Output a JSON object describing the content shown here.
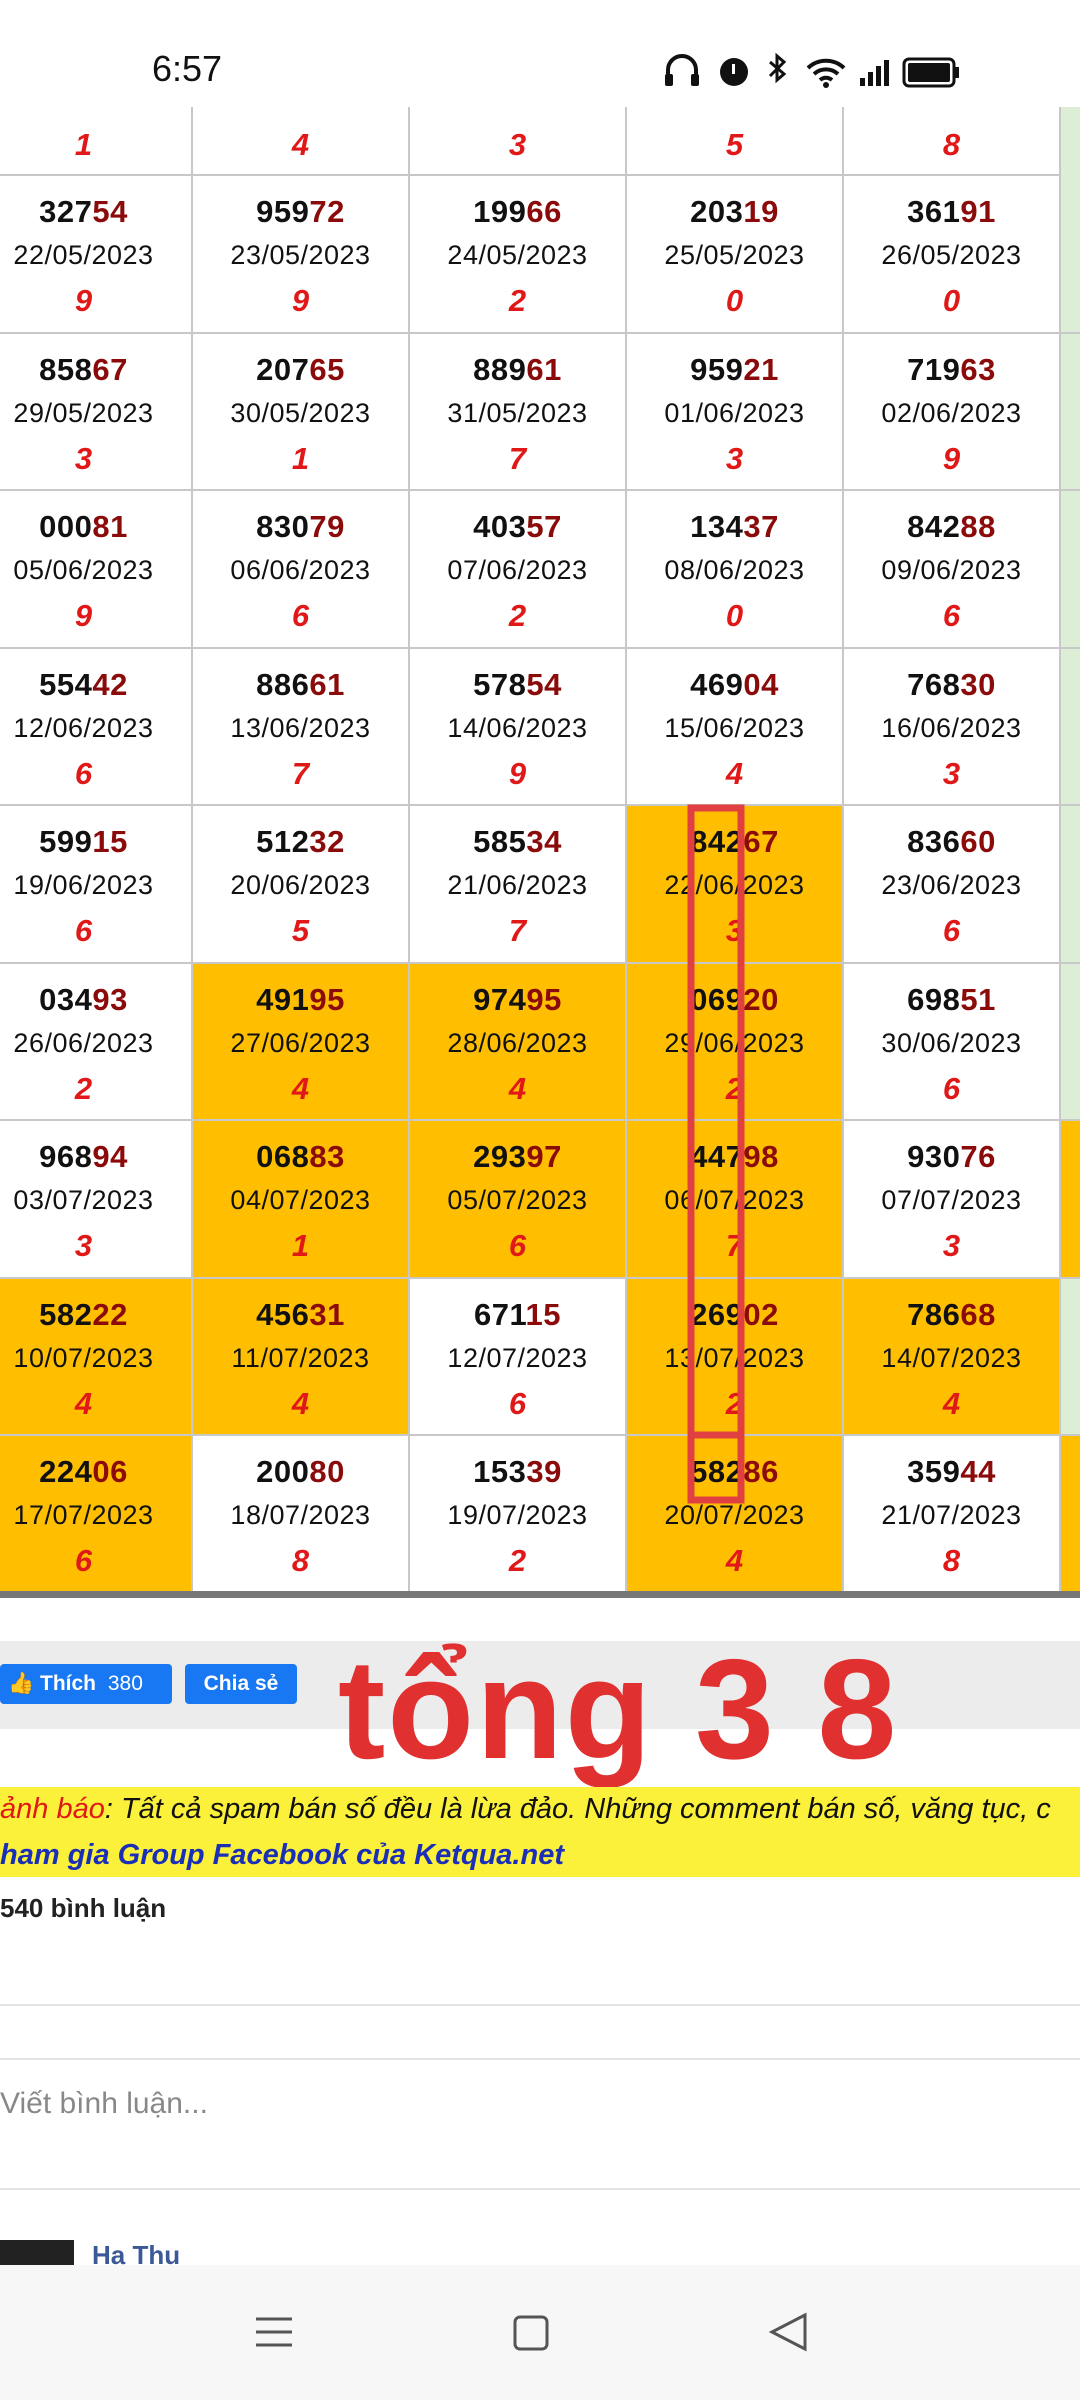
{
  "status_bar": {
    "time": "6:57"
  },
  "table": {
    "top_row": [
      "1",
      "4",
      "3",
      "5",
      "8"
    ],
    "rows": [
      {
        "edge_highlight": false,
        "cells": [
          {
            "number": "32754",
            "date": "22/05/2023",
            "digit": "9",
            "highlight": false
          },
          {
            "number": "95972",
            "date": "23/05/2023",
            "digit": "9",
            "highlight": false
          },
          {
            "number": "19966",
            "date": "24/05/2023",
            "digit": "2",
            "highlight": false
          },
          {
            "number": "20319",
            "date": "25/05/2023",
            "digit": "0",
            "highlight": false
          },
          {
            "number": "36191",
            "date": "26/05/2023",
            "digit": "0",
            "highlight": false
          }
        ]
      },
      {
        "edge_highlight": false,
        "cells": [
          {
            "number": "85867",
            "date": "29/05/2023",
            "digit": "3",
            "highlight": false
          },
          {
            "number": "20765",
            "date": "30/05/2023",
            "digit": "1",
            "highlight": false
          },
          {
            "number": "88961",
            "date": "31/05/2023",
            "digit": "7",
            "highlight": false
          },
          {
            "number": "95921",
            "date": "01/06/2023",
            "digit": "3",
            "highlight": false
          },
          {
            "number": "71963",
            "date": "02/06/2023",
            "digit": "9",
            "highlight": false
          }
        ]
      },
      {
        "edge_highlight": false,
        "cells": [
          {
            "number": "00081",
            "date": "05/06/2023",
            "digit": "9",
            "highlight": false
          },
          {
            "number": "83079",
            "date": "06/06/2023",
            "digit": "6",
            "highlight": false
          },
          {
            "number": "40357",
            "date": "07/06/2023",
            "digit": "2",
            "highlight": false
          },
          {
            "number": "13437",
            "date": "08/06/2023",
            "digit": "0",
            "highlight": false
          },
          {
            "number": "84288",
            "date": "09/06/2023",
            "digit": "6",
            "highlight": false
          }
        ]
      },
      {
        "edge_highlight": false,
        "cells": [
          {
            "number": "55442",
            "date": "12/06/2023",
            "digit": "6",
            "highlight": false
          },
          {
            "number": "88661",
            "date": "13/06/2023",
            "digit": "7",
            "highlight": false
          },
          {
            "number": "57854",
            "date": "14/06/2023",
            "digit": "9",
            "highlight": false
          },
          {
            "number": "46904",
            "date": "15/06/2023",
            "digit": "4",
            "highlight": false
          },
          {
            "number": "76830",
            "date": "16/06/2023",
            "digit": "3",
            "highlight": false
          }
        ]
      },
      {
        "edge_highlight": false,
        "cells": [
          {
            "number": "59915",
            "date": "19/06/2023",
            "digit": "6",
            "highlight": false
          },
          {
            "number": "51232",
            "date": "20/06/2023",
            "digit": "5",
            "highlight": false
          },
          {
            "number": "58534",
            "date": "21/06/2023",
            "digit": "7",
            "highlight": false
          },
          {
            "number": "84267",
            "date": "22/06/2023",
            "digit": "3",
            "highlight": true
          },
          {
            "number": "83660",
            "date": "23/06/2023",
            "digit": "6",
            "highlight": false
          }
        ]
      },
      {
        "edge_highlight": false,
        "cells": [
          {
            "number": "03493",
            "date": "26/06/2023",
            "digit": "2",
            "highlight": false
          },
          {
            "number": "49195",
            "date": "27/06/2023",
            "digit": "4",
            "highlight": true
          },
          {
            "number": "97495",
            "date": "28/06/2023",
            "digit": "4",
            "highlight": true
          },
          {
            "number": "06920",
            "date": "29/06/2023",
            "digit": "2",
            "highlight": true
          },
          {
            "number": "69851",
            "date": "30/06/2023",
            "digit": "6",
            "highlight": false
          }
        ]
      },
      {
        "edge_highlight": true,
        "cells": [
          {
            "number": "96894",
            "date": "03/07/2023",
            "digit": "3",
            "highlight": false
          },
          {
            "number": "06883",
            "date": "04/07/2023",
            "digit": "1",
            "highlight": true
          },
          {
            "number": "29397",
            "date": "05/07/2023",
            "digit": "6",
            "highlight": true
          },
          {
            "number": "44798",
            "date": "06/07/2023",
            "digit": "7",
            "highlight": true
          },
          {
            "number": "93076",
            "date": "07/07/2023",
            "digit": "3",
            "highlight": false
          }
        ]
      },
      {
        "edge_highlight": false,
        "cells": [
          {
            "number": "58222",
            "date": "10/07/2023",
            "digit": "4",
            "highlight": true
          },
          {
            "number": "45631",
            "date": "11/07/2023",
            "digit": "4",
            "highlight": true
          },
          {
            "number": "67115",
            "date": "12/07/2023",
            "digit": "6",
            "highlight": false
          },
          {
            "number": "26902",
            "date": "13/07/2023",
            "digit": "2",
            "highlight": true
          },
          {
            "number": "78668",
            "date": "14/07/2023",
            "digit": "4",
            "highlight": true
          }
        ]
      },
      {
        "edge_highlight": true,
        "cells": [
          {
            "number": "22406",
            "date": "17/07/2023",
            "digit": "6",
            "highlight": true
          },
          {
            "number": "20080",
            "date": "18/07/2023",
            "digit": "8",
            "highlight": false
          },
          {
            "number": "15339",
            "date": "19/07/2023",
            "digit": "2",
            "highlight": false
          },
          {
            "number": "58286",
            "date": "20/07/2023",
            "digit": "4",
            "highlight": true
          },
          {
            "number": "35944",
            "date": "21/07/2023",
            "digit": "8",
            "highlight": false
          }
        ]
      }
    ]
  },
  "social": {
    "like": "Thích",
    "like_count": "380",
    "share": "Chia sẻ"
  },
  "annotation": "tổng 3 8",
  "warning": {
    "label": "ảnh báo",
    "text": ": Tất cả spam bán số đều là lừa đảo. Những comment bán số, văng tục, c",
    "link": "ham gia Group Facebook của Ketqua.net"
  },
  "comments": {
    "count": "540 bình luận",
    "placeholder": "Viết bình luận...",
    "first_author": "Ha Thu"
  }
}
